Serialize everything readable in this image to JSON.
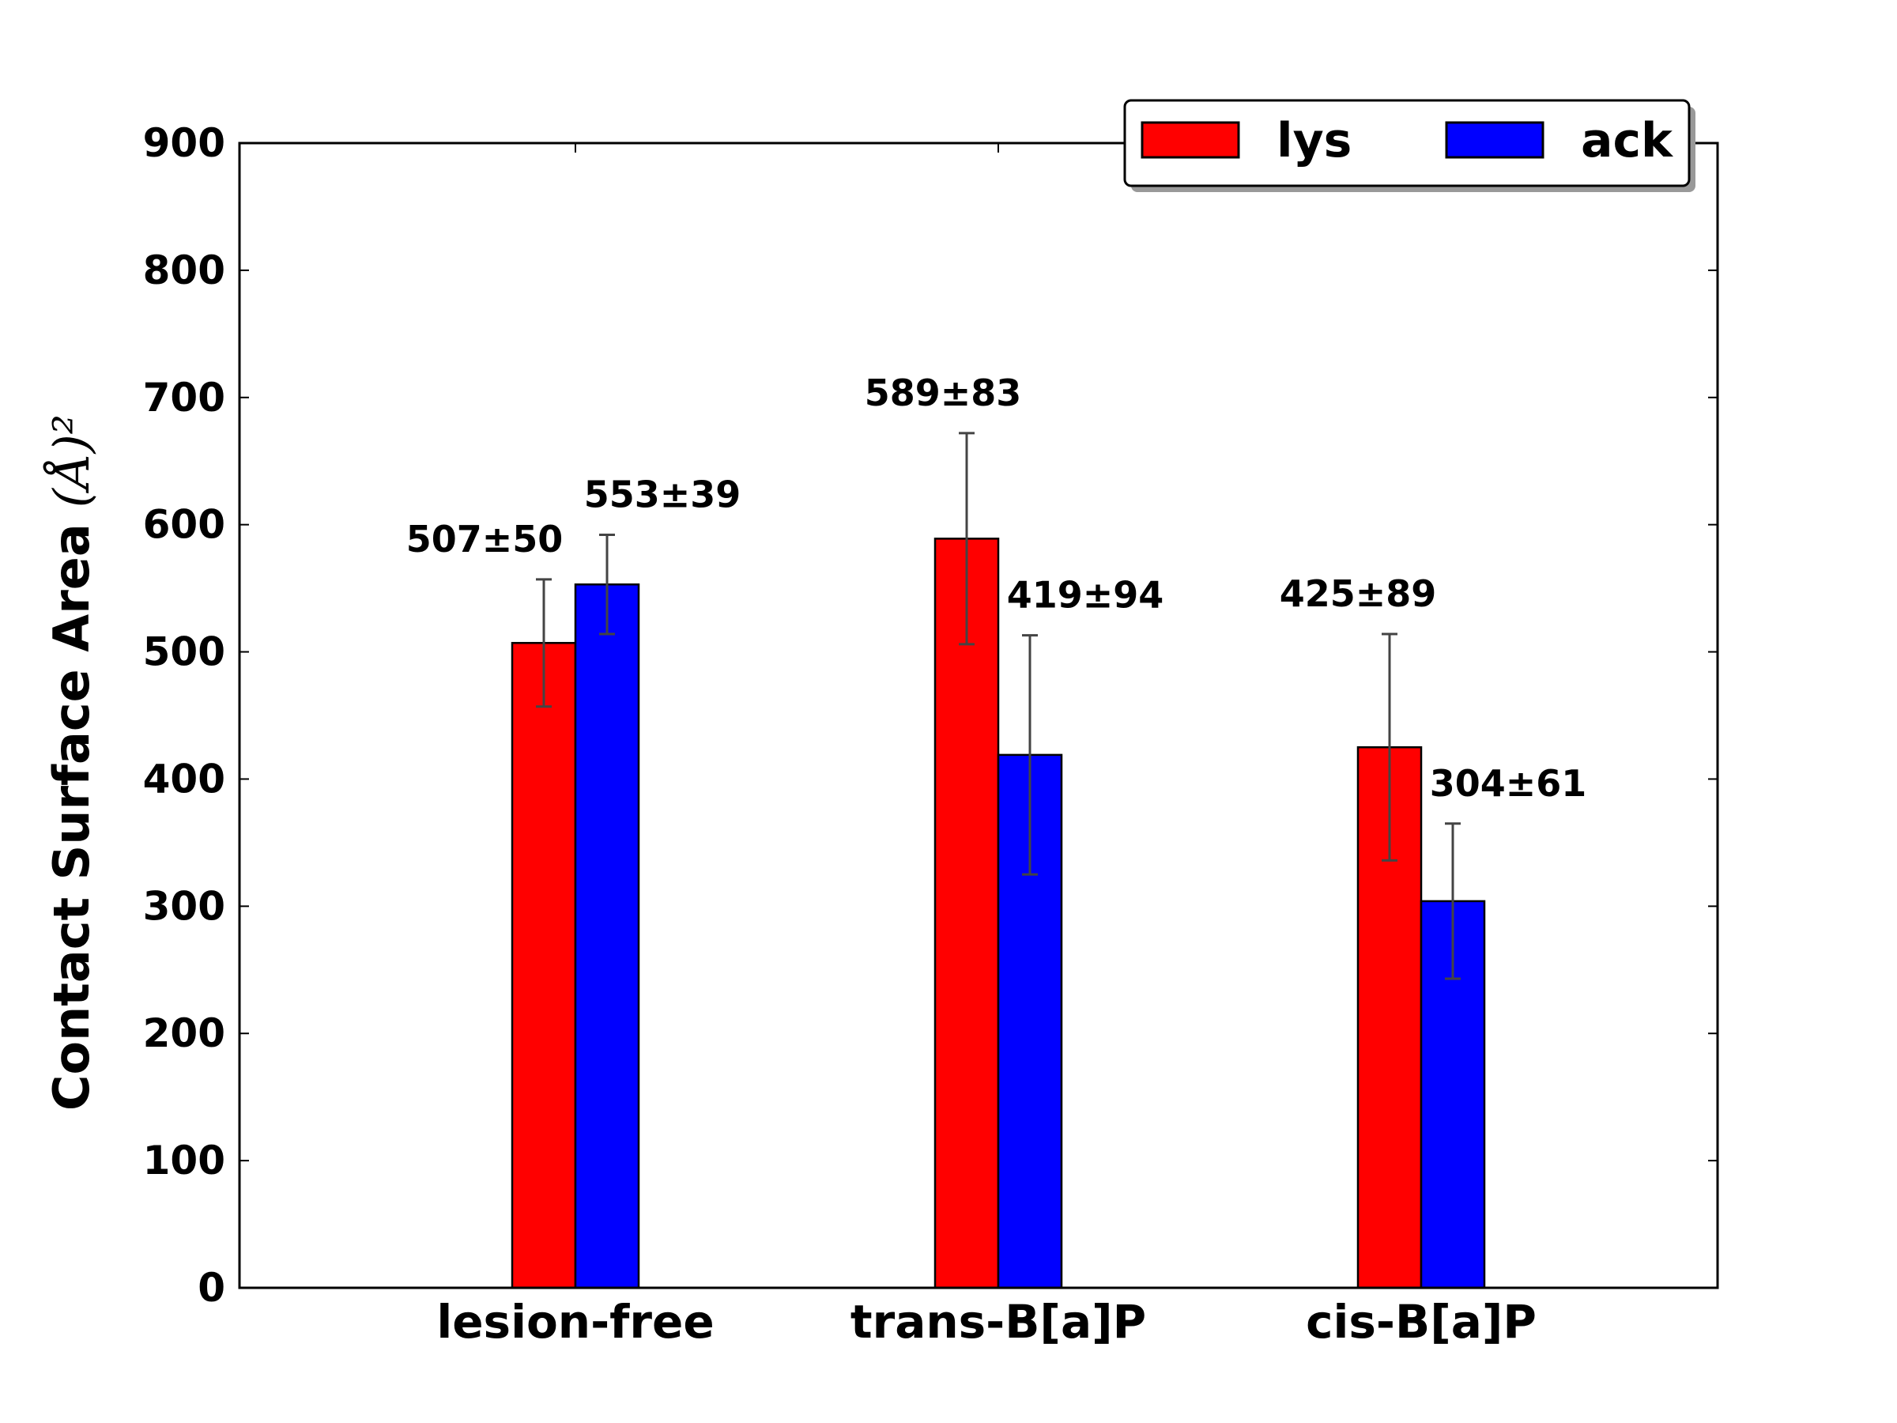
{
  "chart_data": {
    "type": "bar",
    "categories": [
      "lesion-free",
      "trans-B[a]P",
      "cis-B[a]P"
    ],
    "series": [
      {
        "name": "lys",
        "color": "#ff0000",
        "values": [
          507,
          589,
          425
        ],
        "errors": [
          50,
          83,
          89
        ],
        "labels": [
          "507±50",
          "589±83",
          "425±89"
        ]
      },
      {
        "name": "ack",
        "color": "#0000ff",
        "values": [
          553,
          419,
          304
        ],
        "errors": [
          39,
          94,
          61
        ],
        "labels": [
          "553±39",
          "419±94",
          "304±61"
        ]
      }
    ],
    "title": "",
    "xlabel": "",
    "ylabel": "Contact Surface Area",
    "ylabel_unit": "(Å)²",
    "ylim": [
      0,
      900
    ],
    "yticks": [
      0,
      100,
      200,
      300,
      400,
      500,
      600,
      700,
      800,
      900
    ],
    "grid": false,
    "legend_placement": "top-right",
    "error_bar_color": "#444444"
  }
}
